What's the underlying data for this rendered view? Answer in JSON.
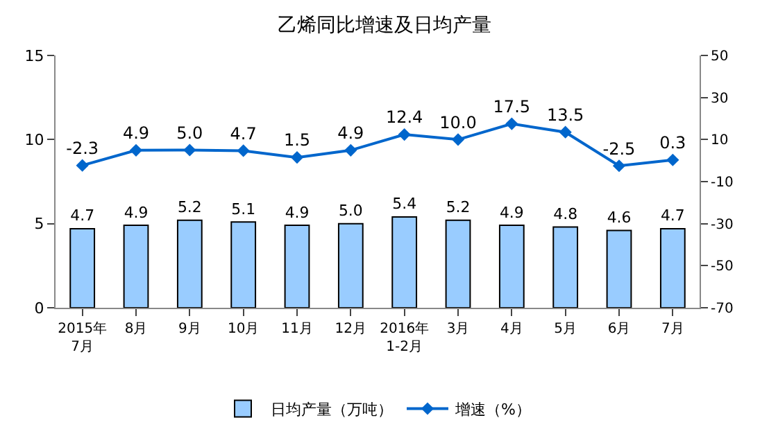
{
  "chart_data": {
    "type": "bar",
    "title": "乙烯同比增速及日均产量",
    "categories": [
      "2015年\n7月",
      "8月",
      "9月",
      "10月",
      "11月",
      "12月",
      "2016年\n1-2月",
      "3月",
      "4月",
      "5月",
      "6月",
      "7月"
    ],
    "series": [
      {
        "name": "日均产量（万吨）",
        "color": "#99ccff",
        "values": [
          4.7,
          4.9,
          5.2,
          5.1,
          4.9,
          5.0,
          5.4,
          5.2,
          4.9,
          4.8,
          4.6,
          4.7
        ],
        "value_labels": [
          "4.7",
          "4.9",
          "5.2",
          "5.1",
          "4.9",
          "5.0",
          "5.4",
          "5.2",
          "4.9",
          "4.8",
          "4.6",
          "4.7"
        ]
      },
      {
        "name": "增速（%）",
        "type": "line",
        "axis": "y2",
        "color": "#0066cc",
        "marker": "diamond",
        "values": [
          -2.3,
          4.9,
          5.0,
          4.7,
          1.5,
          4.9,
          12.4,
          10.0,
          17.5,
          13.5,
          -2.5,
          0.3
        ],
        "value_labels": [
          "-2.3",
          "4.9",
          "5.0",
          "4.7",
          "1.5",
          "4.9",
          "12.4",
          "10.0",
          "17.5",
          "13.5",
          "-2.5",
          "0.3"
        ]
      }
    ],
    "ylim": [
      0,
      15
    ],
    "yticks": [
      0,
      5,
      10,
      15
    ],
    "y2lim": [
      -70,
      50
    ],
    "y2ticks": [
      -70,
      -50,
      -30,
      -10,
      10,
      30,
      50
    ],
    "legend": "bottom"
  }
}
